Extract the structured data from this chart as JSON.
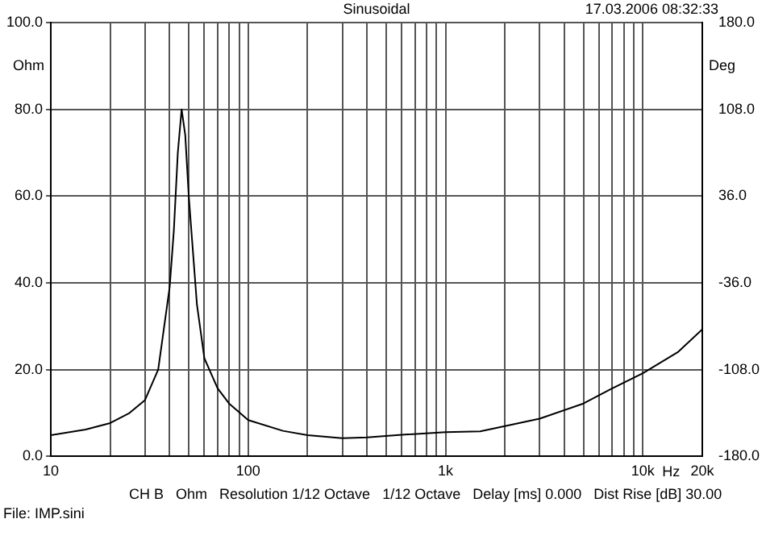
{
  "chart_data": {
    "type": "line",
    "title": "Sinusoidal",
    "xlabel": "Hz",
    "ylabel": "Ohm",
    "y2label": "Deg",
    "annotations": [
      "17.03.2006 08:32:33",
      "CH B   Ohm   Resolution 1/12 Octave   1/12 Octave   Delay [ms] 0.000   Dist Rise [dB] 30.00",
      "File: IMP.sini"
    ],
    "x": [
      10,
      15,
      20,
      25,
      30,
      35,
      40,
      42,
      44,
      46,
      48,
      50,
      55,
      60,
      70,
      80,
      100,
      150,
      200,
      300,
      400,
      600,
      1000,
      1500,
      2000,
      3000,
      5000,
      7000,
      10000,
      15000,
      20000
    ],
    "series": [
      {
        "color": "#000000",
        "values": [
          4.9,
          6.2,
          7.7,
          10,
          13,
          20,
          39,
          52,
          70,
          80,
          74,
          60,
          35,
          22.6,
          15.7,
          12.2,
          8.4,
          5.9,
          4.9,
          4.2,
          4.4,
          5,
          5.6,
          5.8,
          7,
          8.7,
          12.2,
          15.7,
          19.2,
          24,
          29.3
        ]
      }
    ],
    "log": "x",
    "grid": true,
    "legend": false,
    "marker": "none",
    "line_style": "solid",
    "xlim": [
      10,
      20000
    ],
    "xticks": [
      10,
      {
        "value": 20,
        "label": null
      },
      {
        "value": 30,
        "label": null
      },
      {
        "value": 40,
        "label": null
      },
      {
        "value": 50,
        "label": null
      },
      {
        "value": 60,
        "label": null
      },
      {
        "value": 70,
        "label": null
      },
      {
        "value": 80,
        "label": null
      },
      {
        "value": 90,
        "label": null
      },
      100,
      {
        "value": 200,
        "label": null
      },
      {
        "value": 300,
        "label": null
      },
      {
        "value": 400,
        "label": null
      },
      {
        "value": 500,
        "label": null
      },
      {
        "value": 600,
        "label": null
      },
      {
        "value": 700,
        "label": null
      },
      {
        "value": 800,
        "label": null
      },
      {
        "value": 900,
        "label": null
      },
      {
        "value": 1000,
        "label": "1k"
      },
      {
        "value": 2000,
        "label": null
      },
      {
        "value": 3000,
        "label": null
      },
      {
        "value": 4000,
        "label": null
      },
      {
        "value": 5000,
        "label": null
      },
      {
        "value": 6000,
        "label": null
      },
      {
        "value": 7000,
        "label": null
      },
      {
        "value": 8000,
        "label": null
      },
      {
        "value": 9000,
        "label": null
      },
      {
        "value": 10000,
        "label": "10k"
      },
      {
        "value": 20000,
        "label": "20k"
      }
    ],
    "ylim": [
      0,
      100
    ],
    "yticks": [
      {
        "value": 0,
        "label": "0.0"
      },
      {
        "value": 20,
        "label": "20.0"
      },
      {
        "value": 40,
        "label": "40.0"
      },
      {
        "value": 60,
        "label": "60.0"
      },
      {
        "value": 80,
        "label": "80.0"
      },
      {
        "value": 100,
        "label": "100.0"
      }
    ],
    "y2lim": [
      -180,
      180
    ],
    "y2ticks": [
      {
        "value": -180,
        "label": "-180.0"
      },
      {
        "value": -108,
        "label": "-108.0"
      },
      {
        "value": -36,
        "label": "-36.0"
      },
      {
        "value": 36,
        "label": "36.0"
      },
      {
        "value": 108,
        "label": "108.0"
      },
      {
        "value": 180,
        "label": "180.0"
      }
    ]
  }
}
